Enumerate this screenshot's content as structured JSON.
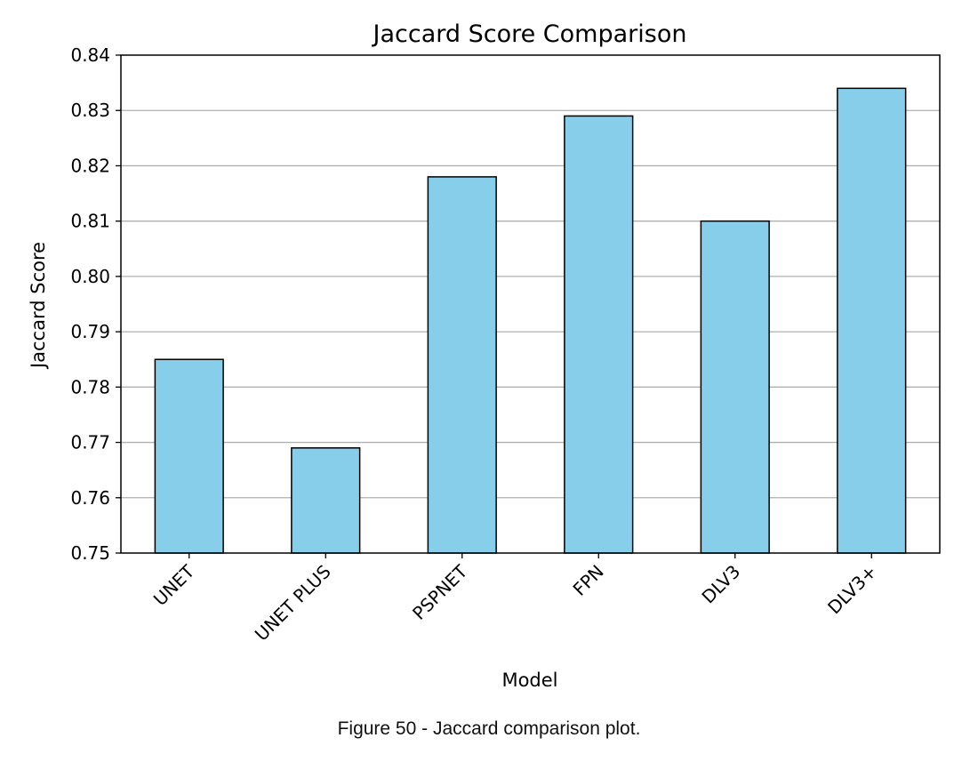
{
  "chart_data": {
    "type": "bar",
    "title": "Jaccard Score Comparison",
    "xlabel": "Model",
    "ylabel": "Jaccard Score",
    "categories": [
      "UNET",
      "UNET PLUS",
      "PSPNET",
      "FPN",
      "DLV3",
      "DLV3+"
    ],
    "values": [
      0.785,
      0.769,
      0.818,
      0.829,
      0.81,
      0.834
    ],
    "ylim": [
      0.75,
      0.84
    ],
    "yticks": [
      "0.75",
      "0.76",
      "0.77",
      "0.78",
      "0.79",
      "0.80",
      "0.81",
      "0.82",
      "0.83",
      "0.84"
    ],
    "grid": "y",
    "bar_color": "#87CEEB",
    "edge_color": "#000000"
  },
  "caption": "Figure 50 - Jaccard comparison plot."
}
